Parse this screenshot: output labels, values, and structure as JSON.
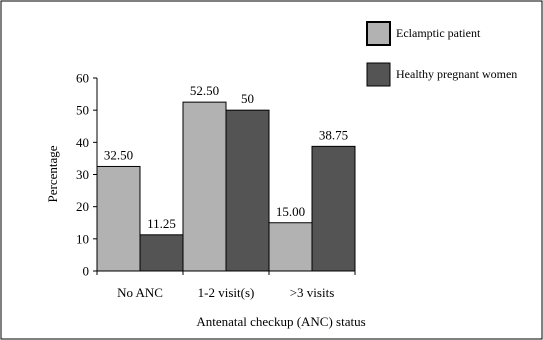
{
  "chart_data": {
    "type": "bar",
    "title": "",
    "xlabel": "Antenatal  checkup (ANC) status",
    "ylabel": "Percentage",
    "categories": [
      "No ANC",
      "1-2 visit(s)",
      ">3 visits"
    ],
    "series": [
      {
        "name": "Eclamptic patient",
        "values": [
          32.5,
          52.5,
          15.0
        ],
        "labels": [
          "32.50",
          "52.50",
          "15.00"
        ],
        "color": "#b2b2b2"
      },
      {
        "name": "Healthy pregnant women",
        "values": [
          11.25,
          50,
          38.75
        ],
        "labels": [
          "11.25",
          "50",
          "38.75"
        ],
        "color": "#545454"
      }
    ],
    "ylim": [
      0,
      60
    ],
    "yticks": [
      "0",
      "10",
      "20",
      "30",
      "40",
      "50",
      "60"
    ],
    "grid": false,
    "legend_position": "top-right"
  }
}
